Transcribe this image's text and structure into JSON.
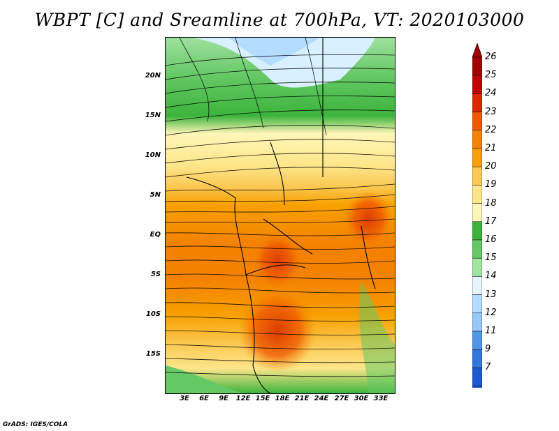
{
  "title": "WBPT [C] and Sreamline at 700hPa, VT: 2020103000",
  "footer": "GrADS: IGES/COLA",
  "lat_labels": [
    "20N",
    "15N",
    "10N",
    "5N",
    "EQ",
    "5S",
    "10S",
    "15S"
  ],
  "lon_labels": [
    "3E",
    "6E",
    "9E",
    "12E",
    "15E",
    "18E",
    "21E",
    "24E",
    "27E",
    "30E",
    "33E"
  ],
  "colorbar": {
    "labels": [
      "26",
      "25",
      "24",
      "23",
      "22",
      "21",
      "20",
      "19",
      "18",
      "17",
      "16",
      "15",
      "14",
      "13",
      "12",
      "11",
      "9",
      "7"
    ],
    "colors": [
      "#a50000",
      "#c00000",
      "#dc2800",
      "#f05a00",
      "#f48200",
      "#f8a000",
      "#fbc850",
      "#fde68a",
      "#fff6b8",
      "#3cb43c",
      "#64c864",
      "#a0e6a0",
      "#e6f5ff",
      "#b4dcff",
      "#96c8f8",
      "#5096e6",
      "#3278dc",
      "#1e5ad2"
    ]
  }
}
